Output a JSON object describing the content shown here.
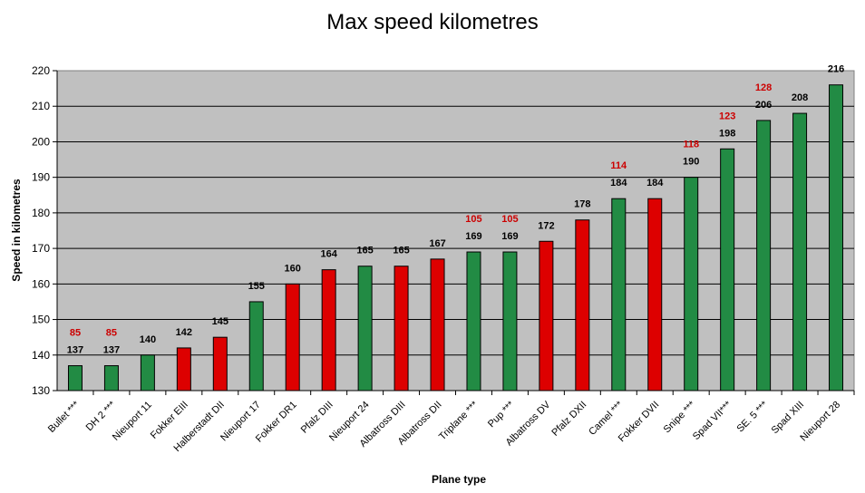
{
  "chart_data": {
    "type": "bar",
    "title": "Max speed kilometres",
    "xlabel": "Plane type",
    "ylabel": "Speed in kilometres",
    "ylim": [
      130,
      220
    ],
    "ytick_step": 10,
    "grid": true,
    "legend": "none",
    "categories": [
      "Bullet ***",
      "DH 2 ***",
      "Nieuport 11",
      "Fokker EIII",
      "Halberstadt DII",
      "Nieuport 17",
      "Fokker DR1",
      "Pfalz DIII",
      "Nieuport 24",
      "Albatross DIII",
      "Albatross DII",
      "Triplane ***",
      "Pup ***",
      "Albatross DV",
      "Pfalz DXII",
      "Camel ***",
      "Fokker DVII",
      "Snipe ***",
      "Spad VII***",
      "SE. 5 ***",
      "Spad XIII",
      "Nieuport 28"
    ],
    "values": [
      137,
      137,
      140,
      142,
      145,
      155,
      160,
      164,
      165,
      165,
      167,
      169,
      169,
      172,
      178,
      184,
      184,
      190,
      198,
      206,
      208,
      216
    ],
    "bar_colors": [
      "#228b44",
      "#228b44",
      "#228b44",
      "#dd0000",
      "#dd0000",
      "#228b44",
      "#dd0000",
      "#dd0000",
      "#228b44",
      "#dd0000",
      "#dd0000",
      "#228b44",
      "#228b44",
      "#dd0000",
      "#dd0000",
      "#228b44",
      "#dd0000",
      "#228b44",
      "#228b44",
      "#228b44",
      "#228b44",
      "#228b44"
    ],
    "secondary_labels": [
      "85",
      "85",
      null,
      null,
      null,
      null,
      null,
      null,
      null,
      null,
      null,
      "105",
      "105",
      null,
      null,
      "114",
      null,
      "118",
      "123",
      "128",
      null,
      null
    ],
    "secondary_label_color": "#cc0000",
    "plot_background": "#c0c0c0"
  }
}
